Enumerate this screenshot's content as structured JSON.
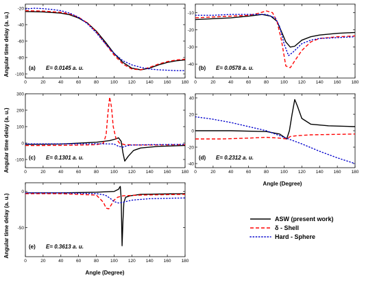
{
  "figure": {
    "x_axis_label": "Angle (Degree)",
    "y_axis_label": "Angular time delay (a. u.)",
    "legend": [
      {
        "label": "ASW (present work)",
        "color": "#000000",
        "dash": "solid"
      },
      {
        "label": "δ - Shell",
        "color": "#ff0000",
        "dash": "dashed"
      },
      {
        "label": "Hard - Sphere",
        "color": "#0000cc",
        "dash": "dotted"
      }
    ]
  },
  "chart_data": [
    {
      "type": "line",
      "panel_label": "(a)",
      "energy_label": "E= 0.0145 a. u.",
      "xlim": [
        0,
        180
      ],
      "ylim": [
        -105,
        -15
      ],
      "xticks": [
        0,
        20,
        40,
        60,
        80,
        100,
        120,
        140,
        160,
        180
      ],
      "yticks": [
        -100,
        -80,
        -60,
        -40,
        -20
      ],
      "series": [
        {
          "name": "ASW (present work)",
          "x": [
            0,
            20,
            40,
            50,
            60,
            70,
            80,
            90,
            100,
            110,
            120,
            130,
            140,
            150,
            160,
            170,
            180
          ],
          "y": [
            -24,
            -24.5,
            -26,
            -28,
            -32,
            -38,
            -48,
            -61,
            -75,
            -86,
            -93,
            -95,
            -93,
            -89,
            -86,
            -84,
            -83
          ]
        },
        {
          "name": "δ - Shell",
          "x": [
            0,
            20,
            40,
            50,
            60,
            70,
            80,
            90,
            100,
            110,
            120,
            130,
            140,
            150,
            160,
            170,
            180
          ],
          "y": [
            -23,
            -23.5,
            -25,
            -27,
            -31,
            -38,
            -49,
            -63,
            -77,
            -88,
            -94,
            -95,
            -92,
            -88,
            -85,
            -83,
            -82
          ]
        },
        {
          "name": "Hard - Sphere",
          "x": [
            0,
            10,
            20,
            30,
            40,
            50,
            60,
            70,
            80,
            90,
            100,
            110,
            120,
            130,
            140,
            150,
            160,
            170,
            180
          ],
          "y": [
            -21,
            -20,
            -20.5,
            -21.5,
            -23,
            -26,
            -31,
            -39,
            -50,
            -63,
            -75,
            -84,
            -89,
            -92,
            -94,
            -95,
            -95.5,
            -96,
            -96
          ]
        }
      ]
    },
    {
      "type": "line",
      "panel_label": "(b)",
      "energy_label": "E= 0.0578 a. u.",
      "xlim": [
        0,
        180
      ],
      "ylim": [
        -48,
        -5
      ],
      "xticks": [
        0,
        20,
        40,
        60,
        80,
        100,
        120,
        140,
        160,
        180
      ],
      "yticks": [
        -40,
        -30,
        -20,
        -10
      ],
      "series": [
        {
          "name": "ASW (present work)",
          "x": [
            0,
            20,
            40,
            60,
            75,
            85,
            92,
            97,
            102,
            107,
            112,
            120,
            130,
            140,
            160,
            180
          ],
          "y": [
            -14,
            -13.5,
            -13,
            -12,
            -11,
            -12,
            -15,
            -21,
            -27,
            -30,
            -29.5,
            -26,
            -24,
            -23,
            -22,
            -21.5
          ]
        },
        {
          "name": "δ - Shell",
          "x": [
            0,
            20,
            40,
            60,
            70,
            80,
            87,
            92,
            97,
            102,
            107,
            112,
            120,
            130,
            140,
            160,
            180
          ],
          "y": [
            -13,
            -12.5,
            -12,
            -11.5,
            -10.5,
            -9,
            -10,
            -15,
            -26,
            -41,
            -42,
            -38,
            -32,
            -27,
            -25,
            -24,
            -23.5
          ]
        },
        {
          "name": "Hard - Sphere",
          "x": [
            0,
            20,
            40,
            60,
            80,
            90,
            95,
            100,
            105,
            110,
            120,
            130,
            140,
            160,
            180
          ],
          "y": [
            -11.5,
            -11.5,
            -11,
            -11,
            -11,
            -13,
            -18,
            -28,
            -35,
            -33,
            -28,
            -26,
            -25,
            -24.5,
            -24
          ]
        }
      ]
    },
    {
      "type": "line",
      "panel_label": "(c)",
      "energy_label": "E= 0.1301 a. u.",
      "xlim": [
        0,
        180
      ],
      "ylim": [
        -150,
        300
      ],
      "xticks": [
        0,
        20,
        40,
        60,
        80,
        100,
        120,
        140,
        160,
        180
      ],
      "yticks": [
        -100,
        0,
        100,
        200,
        300
      ],
      "series": [
        {
          "name": "ASW (present work)",
          "x": [
            0,
            40,
            80,
            95,
            102,
            105,
            108,
            110,
            112,
            116,
            122,
            130,
            150,
            180
          ],
          "y": [
            -8,
            -6,
            5,
            15,
            25,
            32,
            10,
            -60,
            -110,
            -80,
            -45,
            -30,
            -20,
            -15
          ]
        },
        {
          "name": "δ - Shell",
          "x": [
            0,
            40,
            80,
            88,
            91,
            93,
            95,
            97,
            99,
            102,
            106,
            112,
            130,
            180
          ],
          "y": [
            -15,
            -14,
            -10,
            0,
            50,
            180,
            280,
            220,
            100,
            30,
            0,
            -10,
            -12,
            -10
          ]
        },
        {
          "name": "Hard - Sphere",
          "x": [
            0,
            40,
            80,
            100,
            105,
            110,
            115,
            120,
            140,
            180
          ],
          "y": [
            -5,
            -5,
            -4,
            -6,
            -20,
            -25,
            -15,
            -12,
            -10,
            -8
          ]
        }
      ]
    },
    {
      "type": "line",
      "panel_label": "(d)",
      "energy_label": "E= 0.2312 a. u.",
      "xlim": [
        0,
        180
      ],
      "ylim": [
        -45,
        45
      ],
      "xticks": [
        0,
        20,
        40,
        60,
        80,
        100,
        120,
        140,
        160,
        180
      ],
      "yticks": [
        -40,
        -20,
        0,
        20,
        40
      ],
      "series": [
        {
          "name": "ASW (present work)",
          "x": [
            0,
            40,
            80,
            95,
            103,
            106,
            109,
            112,
            115,
            120,
            130,
            150,
            180
          ],
          "y": [
            0,
            0,
            -1,
            -4,
            -10,
            0,
            20,
            38,
            30,
            15,
            8,
            6,
            5
          ]
        },
        {
          "name": "δ - Shell",
          "x": [
            0,
            30,
            60,
            80,
            95,
            103,
            107,
            115,
            130,
            180
          ],
          "y": [
            -10,
            -10,
            -9,
            -8,
            -9,
            -10,
            -7,
            -6,
            -5,
            -4
          ]
        },
        {
          "name": "Hard - Sphere",
          "x": [
            0,
            20,
            40,
            60,
            80,
            100,
            120,
            140,
            160,
            180
          ],
          "y": [
            17,
            14,
            10,
            5,
            0,
            -8,
            -16,
            -25,
            -33,
            -40
          ]
        }
      ]
    },
    {
      "type": "line",
      "panel_label": "(e)",
      "energy_label": "E= 0.3613 a. u.",
      "xlim": [
        0,
        180
      ],
      "ylim": [
        -90,
        12
      ],
      "xticks": [
        0,
        20,
        40,
        60,
        80,
        100,
        120,
        140,
        160,
        180
      ],
      "yticks": [
        -50,
        0
      ],
      "series": [
        {
          "name": "ASW (present work)",
          "x": [
            0,
            40,
            80,
            100,
            105,
            107,
            108,
            109,
            110,
            111,
            113,
            118,
            130,
            180
          ],
          "y": [
            -2,
            -2,
            -1,
            0,
            3,
            7,
            -10,
            -75,
            -40,
            -15,
            -8,
            -6,
            -4,
            -3
          ]
        },
        {
          "name": "δ - Shell",
          "x": [
            0,
            40,
            80,
            88,
            91,
            94,
            97,
            100,
            104,
            110,
            130,
            180
          ],
          "y": [
            -3,
            -3,
            -5,
            -15,
            -23,
            -24,
            -18,
            -12,
            -8,
            -6,
            -5,
            -4
          ]
        },
        {
          "name": "Hard - Sphere",
          "x": [
            0,
            40,
            80,
            90,
            95,
            100,
            105,
            110,
            120,
            140,
            180
          ],
          "y": [
            -2,
            -2,
            -3,
            -5,
            -9,
            -14,
            -16,
            -15,
            -12,
            -10,
            -9
          ]
        }
      ]
    }
  ]
}
